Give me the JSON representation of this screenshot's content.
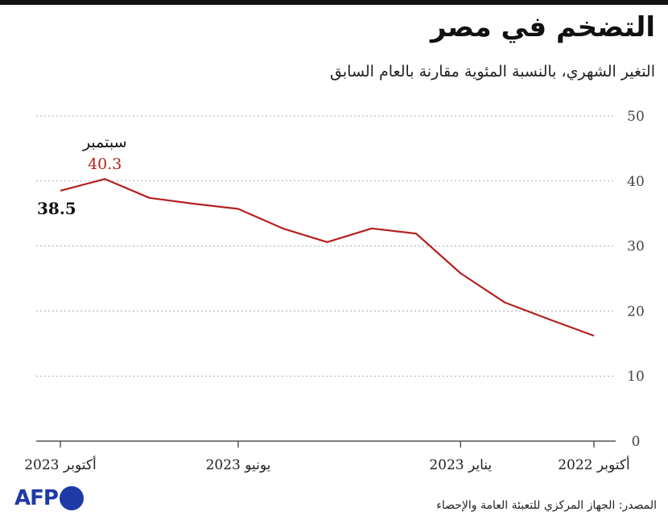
{
  "header": {
    "title": "التضخم في مصر",
    "subtitle": "التغير الشهري، بالنسبة المئوية مقارنة بالعام السابق"
  },
  "chart_data": {
    "type": "line",
    "title": "التضخم في مصر",
    "subtitle": "التغير الشهري، بالنسبة المئوية مقارنة بالعام السابق",
    "x": [
      "2022-10",
      "2022-11",
      "2022-12",
      "2023-01",
      "2023-02",
      "2023-03",
      "2023-04",
      "2023-05",
      "2023-06",
      "2023-07",
      "2023-08",
      "2023-09",
      "2023-10"
    ],
    "series": [
      {
        "name": "التضخم",
        "color": "#b5201e",
        "values": [
          16.2,
          18.7,
          21.3,
          25.8,
          31.9,
          32.7,
          30.6,
          32.7,
          35.7,
          36.5,
          37.4,
          40.3,
          38.5
        ]
      }
    ],
    "ylim": [
      0,
      50
    ],
    "yticks": [
      "0",
      "10",
      "20",
      "30",
      "40",
      "50"
    ],
    "xticks": [
      {
        "label": "أكتوبر 2022",
        "month_index": 0
      },
      {
        "label": "يناير 2023",
        "month_index": 3
      },
      {
        "label": "يونيو 2023",
        "month_index": 8
      },
      {
        "label": "أكتوبر 2023",
        "month_index": 12
      }
    ],
    "grid": true,
    "annotations": {
      "peak_month": "سبتمبر",
      "peak_value": "40.3",
      "last_value": "38.5"
    }
  },
  "footer": {
    "logo": "AFP",
    "source": "المصدر: الجهاز المركزي للتعبئة العامة والإحصاء"
  }
}
